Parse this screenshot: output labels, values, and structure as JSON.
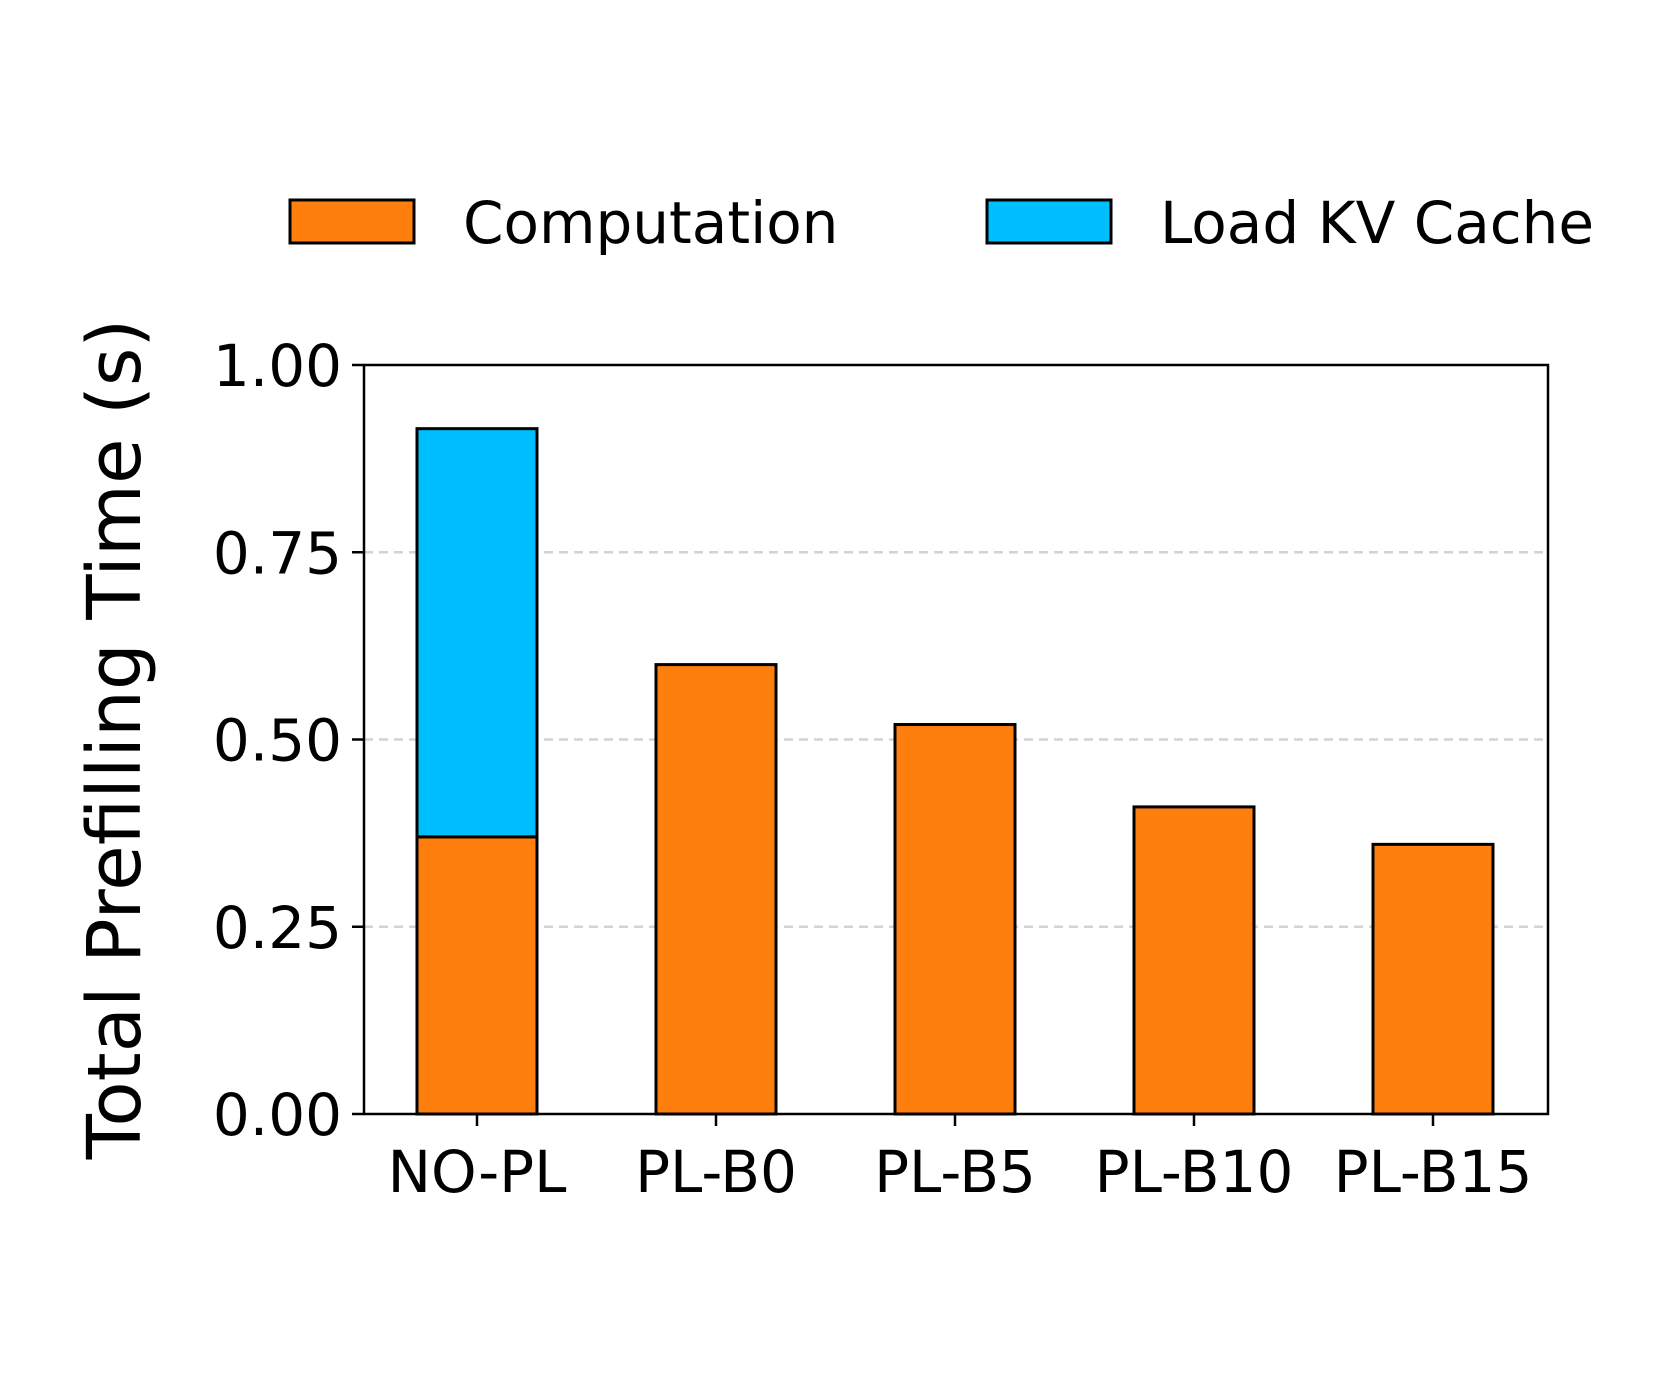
{
  "chart_data": {
    "type": "bar",
    "stacked": true,
    "categories": [
      "NO-PL",
      "PL-B0",
      "PL-B5",
      "PL-B10",
      "PL-B15"
    ],
    "series": [
      {
        "name": "Computation",
        "color": "#ff7f0e",
        "values": [
          0.37,
          0.6,
          0.52,
          0.41,
          0.36
        ]
      },
      {
        "name": "Load KV Cache",
        "color": "#00bfff",
        "values": [
          0.545,
          0,
          0,
          0,
          0
        ]
      }
    ],
    "title": "",
    "xlabel": "",
    "ylabel": "Total Prefilling Time (s)",
    "ylim": [
      0,
      1.0
    ],
    "yticks": [
      0.0,
      0.25,
      0.5,
      0.75,
      1.0
    ],
    "ytick_labels": [
      "0.00",
      "0.25",
      "0.50",
      "0.75",
      "1.00"
    ],
    "grid": "y-dashed",
    "legend": {
      "placement": "top",
      "columns": 2
    }
  }
}
